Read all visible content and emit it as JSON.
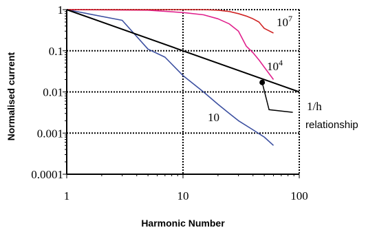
{
  "chart_data": {
    "type": "line",
    "title": "",
    "xlabel": "Harmonic Number",
    "ylabel": "Normalised current",
    "xscale": "log",
    "yscale": "log",
    "xlim": [
      1,
      100
    ],
    "ylim": [
      0.0001,
      1
    ],
    "x_ticks": [
      1,
      10,
      100
    ],
    "x_tick_labels": [
      "1",
      "10",
      "100"
    ],
    "y_ticks": [
      0.0001,
      0.001,
      0.01,
      0.1,
      1
    ],
    "y_tick_labels": [
      "0.0001",
      "0.001",
      "0.01",
      "0.1",
      "1"
    ],
    "grid": "dotted",
    "series": [
      {
        "name": "10",
        "color": "#3b4fa0",
        "x": [
          1,
          3,
          5,
          7,
          10,
          15,
          20,
          25,
          30,
          40,
          50,
          60
        ],
        "y": [
          1,
          0.55,
          0.11,
          0.07,
          0.025,
          0.01,
          0.005,
          0.003,
          0.002,
          0.0012,
          0.0008,
          0.0005
        ]
      },
      {
        "name": "10⁴",
        "color": "#e0208c",
        "x": [
          1,
          5,
          10,
          15,
          20,
          25,
          30,
          35,
          40,
          45,
          50,
          60
        ],
        "y": [
          1,
          0.97,
          0.85,
          0.75,
          0.6,
          0.45,
          0.3,
          0.13,
          0.09,
          0.06,
          0.04,
          0.02
        ]
      },
      {
        "name": "10⁷",
        "color": "#d02424",
        "x": [
          1,
          10,
          15,
          20,
          25,
          30,
          35,
          40,
          45,
          50,
          60
        ],
        "y": [
          1,
          1,
          1,
          0.97,
          0.9,
          0.8,
          0.7,
          0.6,
          0.5,
          0.35,
          0.27
        ]
      },
      {
        "name": "1/h relationship",
        "color": "#000000",
        "x": [
          1,
          100
        ],
        "y": [
          1,
          0.01
        ]
      }
    ],
    "labels": {
      "blue": "10",
      "pink_base": "10",
      "pink_exp": "4",
      "red_base": "10",
      "red_exp": "7",
      "one_over_h": "1/h",
      "relationship": "relationship"
    },
    "pointer": {
      "marker": [
        48,
        0.017
      ],
      "bend": [
        55,
        0.0037
      ],
      "end": [
        88,
        0.0032
      ]
    }
  }
}
